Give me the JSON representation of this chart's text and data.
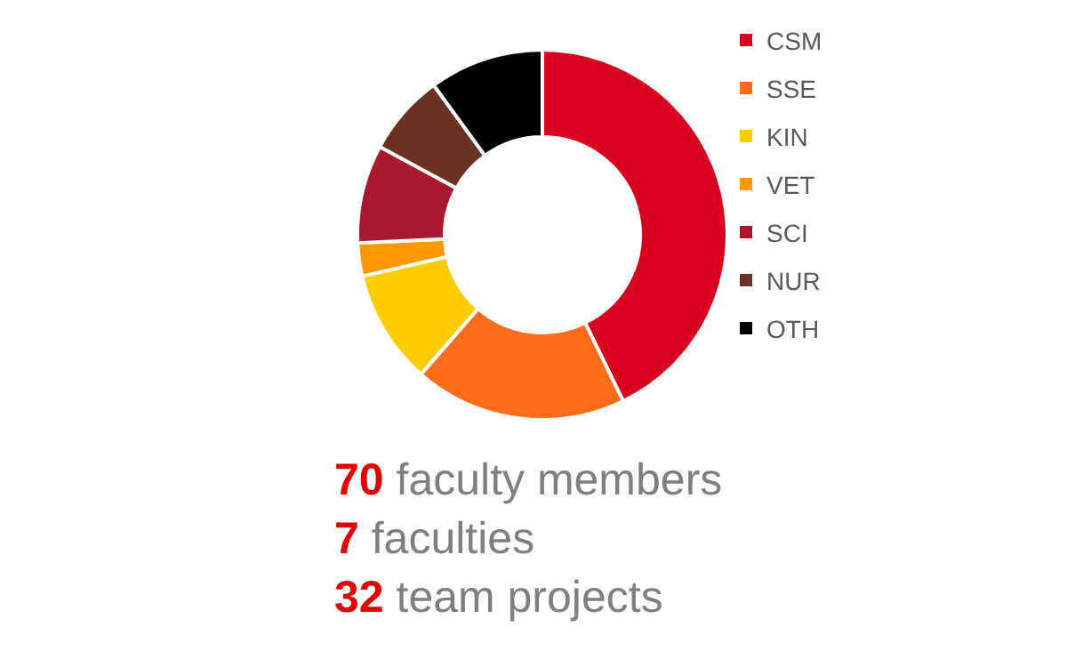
{
  "chart_data": {
    "type": "donut",
    "categories": [
      "CSM",
      "SSE",
      "KIN",
      "VET",
      "SCI",
      "NUR",
      "OTH"
    ],
    "values": [
      42.8,
      18.6,
      10,
      2.9,
      8.6,
      7.1,
      10
    ],
    "colors": [
      "#d7001e",
      "#ff6b1a",
      "#ffcc00",
      "#ff9900",
      "#a8192e",
      "#6b3222",
      "#000000"
    ],
    "legend": "right",
    "annotations": [
      "70 faculty members",
      "7 faculties",
      "32 team projects"
    ]
  }
}
